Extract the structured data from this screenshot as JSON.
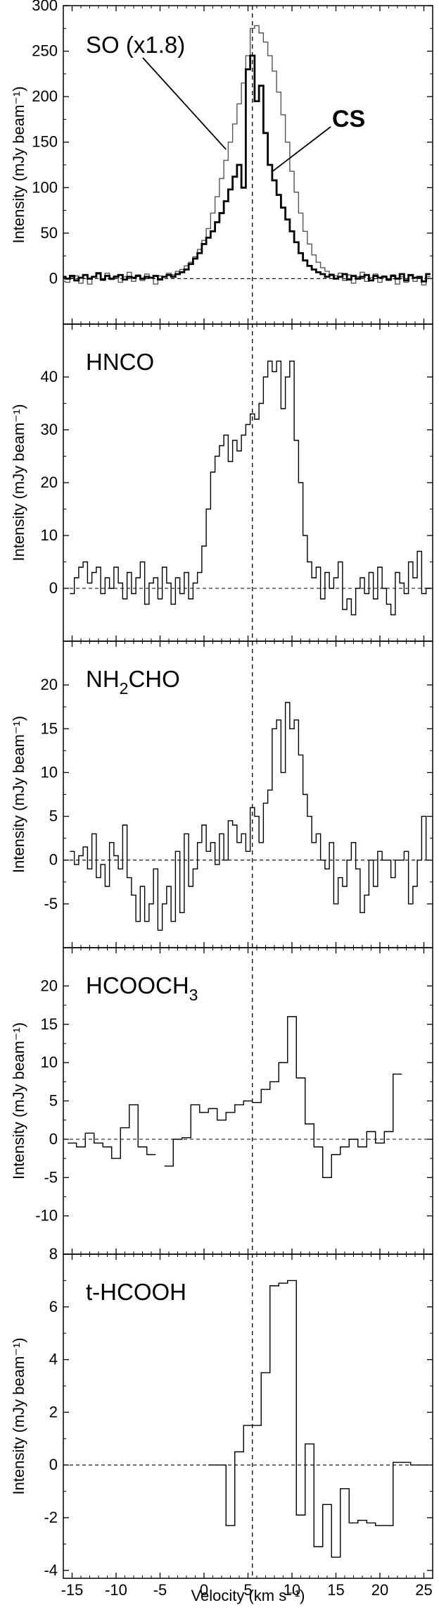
{
  "chart_data": [
    {
      "type": "line",
      "title": "",
      "xlabel": "",
      "ylabel": "Intensity (mJy beam⁻¹)",
      "xlim": [
        -16,
        26
      ],
      "ylim": [
        -50,
        300
      ],
      "yticks": [
        0,
        50,
        100,
        150,
        200,
        250,
        300
      ],
      "zero_line": true,
      "annotations": [
        {
          "text": "SO (x1.8)",
          "x": -13.5,
          "y": 255,
          "pointer_x": 2.5,
          "pointer_y": 142
        },
        {
          "text": "CS",
          "x": 13.5,
          "y": 150,
          "pointer_x": 7.8,
          "pointer_y": 118
        }
      ],
      "series": [
        {
          "name": "SO (x1.8)",
          "color": "#555555",
          "stroke": 1.4,
          "x": [
            -16,
            -15.5,
            -15,
            -14.5,
            -14,
            -13.5,
            -13,
            -12.5,
            -12,
            -11.5,
            -11,
            -10.5,
            -10,
            -9.5,
            -9,
            -8.5,
            -8,
            -7.5,
            -7,
            -6.5,
            -6,
            -5.5,
            -5,
            -4.5,
            -4,
            -3.5,
            -3,
            -2.5,
            -2,
            -1.5,
            -1,
            -0.5,
            0,
            0.5,
            1,
            1.5,
            2,
            2.5,
            3,
            3.5,
            4,
            4.5,
            5,
            5.5,
            6,
            6.5,
            7,
            7.5,
            8,
            8.5,
            9,
            9.5,
            10,
            10.5,
            11,
            11.5,
            12,
            12.5,
            13,
            13.5,
            14,
            14.5,
            15,
            15.5,
            16,
            16.5,
            17,
            17.5,
            18,
            18.5,
            19,
            19.5,
            20,
            20.5,
            21,
            21.5,
            22,
            22.5,
            23,
            23.5,
            24,
            24.5,
            25,
            25.5
          ],
          "y": [
            -3,
            -4,
            1,
            3,
            -5,
            4,
            -6,
            2,
            5,
            -2,
            6,
            -1,
            3,
            -4,
            2,
            7,
            -3,
            4,
            -2,
            5,
            1,
            -6,
            3,
            2,
            6,
            4,
            8,
            10,
            14,
            18,
            24,
            32,
            42,
            55,
            72,
            90,
            110,
            130,
            150,
            170,
            192,
            215,
            245,
            275,
            278,
            270,
            260,
            245,
            228,
            205,
            180,
            150,
            118,
            95,
            72,
            52,
            38,
            26,
            18,
            12,
            8,
            5,
            3,
            6,
            -2,
            4,
            -5,
            2,
            7,
            -3,
            1,
            5,
            -4,
            3,
            -2,
            4,
            -6,
            2,
            -4,
            3,
            -3,
            1,
            -7,
            2
          ]
        },
        {
          "name": "CS",
          "color": "#000000",
          "stroke": 2.8,
          "x": [
            -16,
            -15.5,
            -15,
            -14.5,
            -14,
            -13.5,
            -13,
            -12.5,
            -12,
            -11.5,
            -11,
            -10.5,
            -10,
            -9.5,
            -9,
            -8.5,
            -8,
            -7.5,
            -7,
            -6.5,
            -6,
            -5.5,
            -5,
            -4.5,
            -4,
            -3.5,
            -3,
            -2.5,
            -2,
            -1.5,
            -1,
            -0.5,
            0,
            0.5,
            1,
            1.5,
            2,
            2.5,
            3,
            3.5,
            4,
            4.5,
            5,
            5.5,
            6,
            6.5,
            7,
            7.5,
            8,
            8.5,
            9,
            9.5,
            10,
            10.5,
            11,
            11.5,
            12,
            12.5,
            13,
            13.5,
            14,
            14.5,
            15,
            15.5,
            16,
            16.5,
            17,
            17.5,
            18,
            18.5,
            19,
            19.5,
            20,
            20.5,
            21,
            21.5,
            22,
            22.5,
            23,
            23.5,
            24,
            24.5,
            25,
            25.5
          ],
          "y": [
            2,
            0,
            3,
            -2,
            1,
            4,
            0,
            2,
            6,
            -1,
            3,
            0,
            2,
            4,
            -1,
            2,
            1,
            3,
            0,
            2,
            1,
            3,
            -1,
            2,
            4,
            2,
            5,
            7,
            10,
            16,
            22,
            28,
            38,
            45,
            52,
            62,
            72,
            85,
            98,
            112,
            125,
            100,
            230,
            245,
            195,
            212,
            160,
            125,
            108,
            92,
            78,
            65,
            52,
            40,
            28,
            20,
            14,
            10,
            7,
            5,
            2,
            4,
            0,
            2,
            5,
            -1,
            3,
            0,
            2,
            4,
            -2,
            3,
            1,
            2,
            -1,
            3,
            0,
            5,
            -2,
            4,
            1,
            2,
            -3,
            5
          ]
        }
      ]
    },
    {
      "type": "line",
      "title": "HNCO",
      "xlabel": "",
      "ylabel": "Intensity (mJy beam⁻¹)",
      "xlim": [
        -16,
        26
      ],
      "ylim": [
        -10,
        50
      ],
      "yticks": [
        0,
        10,
        20,
        30,
        40
      ],
      "zero_line": true,
      "series": [
        {
          "name": "HNCO",
          "color": "#000000",
          "stroke": 1.4,
          "x": [
            -15,
            -14.5,
            -14,
            -13.5,
            -13,
            -12.5,
            -12,
            -11.5,
            -11,
            -10.5,
            -10,
            -9.5,
            -9,
            -8.5,
            -8,
            -7.5,
            -7,
            -6.5,
            -6,
            -5.5,
            -5,
            -4.5,
            -4,
            -3.5,
            -3,
            -2.5,
            -2,
            -1.5,
            -1,
            -0.5,
            0,
            0.5,
            1,
            1.5,
            2,
            2.5,
            3,
            3.5,
            4,
            4.5,
            5,
            5.5,
            6,
            6.5,
            7,
            7.5,
            8,
            8.5,
            9,
            9.5,
            10,
            10.5,
            11,
            11.5,
            12,
            12.5,
            13,
            13.5,
            14,
            14.5,
            15,
            15.5,
            16,
            16.5,
            17,
            17.5,
            18,
            18.5,
            19,
            19.5,
            20,
            20.5,
            21,
            21.5,
            22,
            22.5,
            23,
            23.5,
            24,
            24.5,
            25,
            25.5
          ],
          "y": [
            -1,
            2,
            4,
            5,
            1,
            3,
            4,
            -1,
            2,
            0,
            4,
            1,
            -2,
            3,
            -1,
            2,
            5,
            -3,
            1,
            2,
            -2,
            4,
            1,
            -3,
            2,
            -1,
            3,
            -2,
            1,
            3,
            8,
            15,
            22,
            25,
            27,
            29,
            24,
            28,
            26,
            29,
            31,
            33,
            32,
            35,
            40,
            43,
            41,
            43,
            34,
            40,
            43,
            28,
            20,
            10,
            5,
            2,
            4,
            -2,
            3,
            0,
            2,
            5,
            -4,
            -2,
            -5,
            0,
            2,
            -1,
            3,
            -2,
            4,
            0,
            -3,
            -5,
            3,
            1,
            -1,
            5,
            2,
            7,
            -1,
            0
          ]
        }
      ]
    },
    {
      "type": "line",
      "title": "NH2CHO",
      "xlabel": "",
      "ylabel": "Intensity (mJy beam⁻¹)",
      "xlim": [
        -16,
        26
      ],
      "ylim": [
        -10,
        25
      ],
      "yticks": [
        -5,
        0,
        5,
        10,
        15,
        20
      ],
      "zero_line": true,
      "series": [
        {
          "name": "NH2CHO",
          "color": "#000000",
          "stroke": 1.4,
          "x": [
            -15,
            -14.5,
            -14,
            -13.5,
            -13,
            -12.5,
            -12,
            -11.5,
            -11,
            -10.5,
            -10,
            -9.5,
            -9,
            -8.5,
            -8,
            -7.5,
            -7,
            -6.5,
            -6,
            -5.5,
            -5,
            -4.5,
            -4,
            -3.5,
            -3,
            -2.5,
            -2,
            -1.5,
            -1,
            -0.5,
            0,
            0.5,
            1,
            1.5,
            2,
            2.5,
            3,
            3.5,
            4,
            4.5,
            5,
            5.5,
            6,
            6.5,
            7,
            7.5,
            8,
            8.5,
            9,
            9.5,
            10,
            10.5,
            11,
            11.5,
            12,
            12.5,
            13,
            13.5,
            14,
            14.5,
            15,
            15.5,
            16,
            16.5,
            17,
            17.5,
            18,
            18.5,
            19,
            19.5,
            20,
            20.5,
            21,
            21.5,
            22,
            22.5,
            23,
            23.5,
            24,
            24.5,
            25,
            25.5
          ],
          "y": [
            1,
            -0.5,
            0.5,
            1.5,
            -1,
            3,
            -2,
            -0.5,
            -3,
            2,
            0.5,
            -1,
            4,
            -2,
            -4,
            -7,
            -3,
            -7,
            -5,
            -1,
            -8,
            -5,
            -3,
            -7,
            1,
            -6,
            3,
            -3,
            -1,
            2,
            4,
            1,
            2,
            -0.5,
            3,
            0,
            4.5,
            4,
            2,
            3,
            1,
            6,
            5,
            2,
            6.5,
            8,
            15,
            16,
            10,
            18,
            15,
            16,
            12,
            7.5,
            5,
            2,
            3,
            0,
            -1,
            2,
            -5,
            -2,
            -3,
            0,
            2,
            -1,
            -6,
            -4,
            0,
            -3,
            1,
            0,
            0,
            -2,
            0,
            0,
            1,
            -5,
            -3,
            0,
            5,
            0
          ]
        }
      ]
    },
    {
      "type": "line",
      "title": "HCOOCH3",
      "xlabel": "",
      "ylabel": "Intensity (mJy beam⁻¹)",
      "xlim": [
        -16,
        26
      ],
      "ylim": [
        -15,
        25
      ],
      "yticks": [
        -10,
        -5,
        0,
        5,
        10,
        15,
        20
      ],
      "zero_line": true,
      "series": [
        {
          "name": "HCOOCH3",
          "color": "#000000",
          "stroke": 1.4,
          "x": [
            -15,
            -14,
            -13,
            -12,
            -11,
            -10,
            -9,
            -8,
            -7,
            -6,
            -5,
            -4,
            -3,
            -2,
            -1,
            0,
            1,
            2,
            3,
            4,
            5,
            6,
            7,
            8,
            9,
            10,
            11,
            12,
            13,
            14,
            15,
            16,
            17,
            18,
            19,
            20,
            21,
            22
          ],
          "y": [
            -0.5,
            -1,
            0.8,
            -0.5,
            -1,
            -2.5,
            1.5,
            4.5,
            -1,
            -2,
            null,
            -3.5,
            0,
            0.2,
            4.5,
            3.5,
            4,
            2.5,
            3.5,
            4.5,
            5,
            4.8,
            6.5,
            7.5,
            10,
            16,
            8,
            2,
            -1,
            -5,
            -2,
            -1,
            0,
            -1,
            1,
            -0.5,
            1,
            8.5
          ]
        }
      ]
    },
    {
      "type": "line",
      "title": "t-HCOOH",
      "xlabel": "Velocity (km s⁻¹)",
      "ylabel": "Intensity (mJy beam⁻¹)",
      "xlim": [
        -16,
        26
      ],
      "ylim": [
        -4.3,
        8
      ],
      "yticks": [
        -4,
        -2,
        0,
        2,
        4,
        6,
        8
      ],
      "xticks": [
        -15,
        -10,
        -5,
        0,
        5,
        10,
        15,
        20,
        25
      ],
      "zero_line": true,
      "series": [
        {
          "name": "t-HCOOH",
          "color": "#000000",
          "stroke": 1.4,
          "x": [
            1,
            2,
            3,
            4,
            5,
            6,
            7,
            8,
            9,
            10,
            11,
            12,
            13,
            14,
            15,
            16,
            17,
            18,
            19,
            20,
            21,
            22,
            23,
            24,
            25
          ],
          "y": [
            0,
            0,
            -2.3,
            0.5,
            1.5,
            1.5,
            3.5,
            6.8,
            6.9,
            7,
            -1.9,
            0.8,
            -3.1,
            -1.5,
            -3.5,
            -0.9,
            -2.2,
            -2.1,
            -2.2,
            -2.3,
            -2.3,
            0.1,
            0.1,
            0,
            0
          ]
        }
      ]
    }
  ],
  "vertical_line": {
    "x": 5.5,
    "style": "dashed",
    "color": "#000000"
  },
  "panel_labels": [
    {
      "main": "SO (x1.8)",
      "sub": ""
    },
    {
      "main": "HNCO",
      "sub": ""
    },
    {
      "main": "NH",
      "sub": "2",
      "tail": "CHO"
    },
    {
      "main": "HCOOCH",
      "sub": "3"
    },
    {
      "main": "t-HCOOH",
      "sub": ""
    }
  ],
  "cs_label": "CS",
  "x_axis_title": "Velocity (km s⁻¹)",
  "y_axis_title": "Intensity (mJy beam⁻¹)"
}
